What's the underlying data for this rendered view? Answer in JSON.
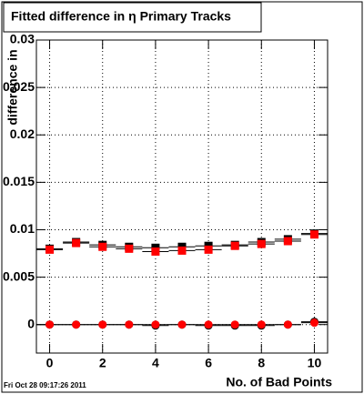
{
  "chart_data": {
    "type": "scatter",
    "title": "Fitted difference in  η Primary Tracks",
    "x_label": "No. of Bad Points",
    "y_label": "difference in",
    "timestamp": "Fri Oct 28 09:17:26 2011",
    "x": [
      0,
      1,
      2,
      3,
      4,
      5,
      6,
      7,
      8,
      9,
      10
    ],
    "series": [
      {
        "color": "#000000",
        "marker": "square",
        "values": [
          0.008,
          0.0087,
          0.0084,
          0.0082,
          0.0081,
          0.0082,
          0.0083,
          0.0084,
          0.0087,
          0.009,
          0.0096
        ]
      },
      {
        "color": "#000000",
        "marker": "circle",
        "values": [
          0.0,
          0.0,
          0.0,
          0.0,
          -0.0001,
          0.0,
          -0.0001,
          -0.0001,
          -0.0001,
          0.0,
          0.0003
        ]
      },
      {
        "color": "#ff0000",
        "marker": "square",
        "values": [
          0.0079,
          0.0086,
          0.0082,
          0.008,
          0.0077,
          0.0078,
          0.0079,
          0.0083,
          0.0085,
          0.0088,
          0.0095
        ]
      },
      {
        "color": "#ff0000",
        "marker": "circle",
        "values": [
          0.0,
          0.0,
          0.0,
          0.0,
          0.0,
          0.0,
          0.0,
          0.0,
          0.0,
          0.0,
          0.0002
        ]
      }
    ],
    "xlim": [
      -0.5,
      10.5
    ],
    "xticks": [
      0,
      2,
      4,
      6,
      8,
      10
    ],
    "ylim": [
      -0.003,
      0.03
    ],
    "yticks": [
      0,
      0.005,
      0.01,
      0.015,
      0.02,
      0.025,
      0.03
    ],
    "grid": true
  }
}
